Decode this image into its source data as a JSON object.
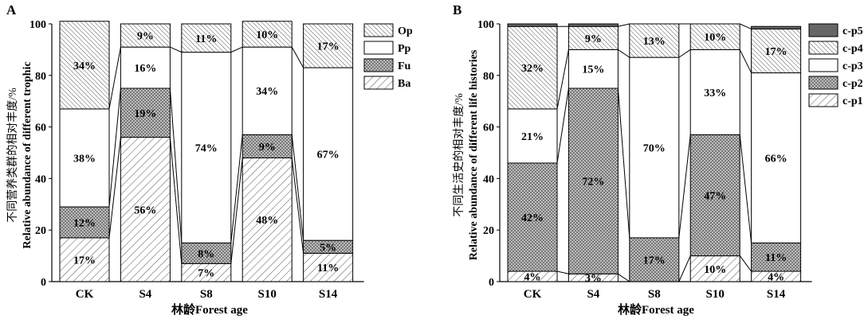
{
  "chart_data": [
    {
      "type": "bar",
      "stacked": true,
      "panel_label": "A",
      "ylabel_cn": "不同营养类群的相对丰度/%",
      "ylabel_en": "Relative abundance of different trophic",
      "xlabel": "林龄Forest age",
      "categories": [
        "CK",
        "S4",
        "S8",
        "S10",
        "S14"
      ],
      "ylim": [
        0,
        100
      ],
      "yticks": [
        0,
        20,
        40,
        60,
        80,
        100
      ],
      "series": [
        {
          "name": "Ba",
          "values": [
            17,
            56,
            7,
            48,
            11
          ],
          "labels": [
            "17%",
            "56%",
            "7%",
            "48%",
            "11%"
          ],
          "pattern": "diag-wide"
        },
        {
          "name": "Fu",
          "values": [
            12,
            19,
            8,
            9,
            5
          ],
          "labels": [
            "12%",
            "19%",
            "8%",
            "9%",
            "5%"
          ],
          "pattern": "cross"
        },
        {
          "name": "Pp",
          "values": [
            38,
            16,
            74,
            34,
            67
          ],
          "labels": [
            "38%",
            "16%",
            "74%",
            "34%",
            "67%"
          ],
          "pattern": "none"
        },
        {
          "name": "Op",
          "values": [
            34,
            9,
            11,
            10,
            17
          ],
          "labels": [
            "34%",
            "9%",
            "11%",
            "10%",
            "17%"
          ],
          "pattern": "diag-narrow"
        }
      ],
      "legend_position": "right"
    },
    {
      "type": "bar",
      "stacked": true,
      "panel_label": "B",
      "ylabel_cn": "不同生活史的相对丰度/%",
      "ylabel_en": "Relative abundance of different life histories",
      "xlabel": "林龄Forest age",
      "categories": [
        "CK",
        "S4",
        "S8",
        "S10",
        "S14"
      ],
      "ylim": [
        0,
        100
      ],
      "yticks": [
        0,
        20,
        40,
        60,
        80,
        100
      ],
      "series": [
        {
          "name": "c-p1",
          "values": [
            4,
            3,
            0,
            10,
            4
          ],
          "labels": [
            "4%",
            "3%",
            "",
            "10%",
            "4%"
          ],
          "pattern": "diag-wide"
        },
        {
          "name": "c-p2",
          "values": [
            42,
            72,
            17,
            47,
            11
          ],
          "labels": [
            "42%",
            "72%",
            "17%",
            "47%",
            "11%"
          ],
          "pattern": "cross"
        },
        {
          "name": "c-p3",
          "values": [
            21,
            15,
            70,
            33,
            66
          ],
          "labels": [
            "21%",
            "15%",
            "70%",
            "33%",
            "66%"
          ],
          "pattern": "none"
        },
        {
          "name": "c-p4",
          "values": [
            32,
            9,
            13,
            10,
            17
          ],
          "labels": [
            "32%",
            "9%",
            "13%",
            "10%",
            "17%"
          ],
          "pattern": "diag-narrow"
        },
        {
          "name": "c-p5",
          "values": [
            1,
            1,
            0,
            0,
            1
          ],
          "labels": [
            "",
            "",
            "",
            "",
            ""
          ],
          "pattern": "solid"
        }
      ],
      "legend_position": "right"
    }
  ]
}
